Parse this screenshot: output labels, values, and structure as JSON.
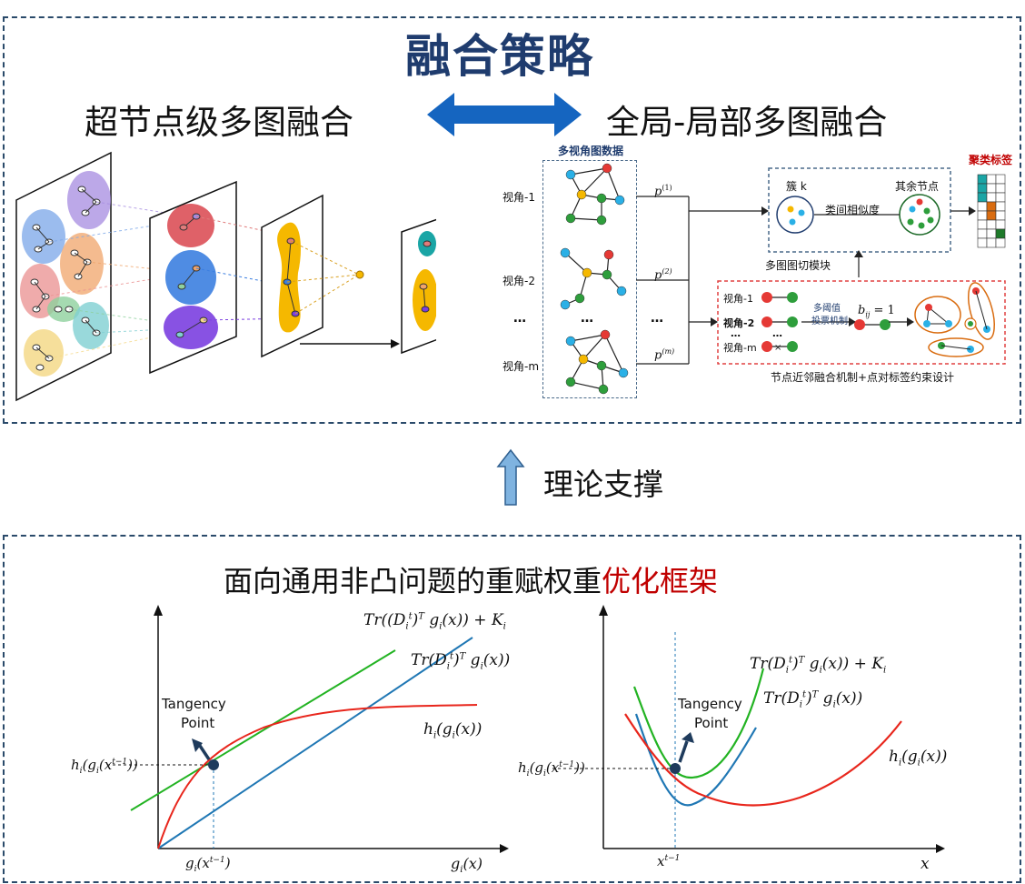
{
  "strategy": {
    "title": "融合策略",
    "left_heading": "超节点级多图融合",
    "right_heading": "全局-局部多图融合",
    "right_diagram": {
      "data_label": "多视角图数据",
      "view1": "视角-1",
      "view2": "视角-2",
      "viewm": "视角-m",
      "ellipsis": "…",
      "p1": "p",
      "p1_sup": "(1)",
      "p2": "p",
      "p2_sup": "(2)",
      "pm": "p",
      "pm_sup": "(m)",
      "cluster_label": "簇 k",
      "rest_nodes_label": "其余节点",
      "inter_sim_label": "类间相似度",
      "cut_module_label": "多图图切模块",
      "cluster_tag_label": "聚类标签",
      "local_view1": "视角-1",
      "local_view2": "视角-2",
      "local_viewm": "视角-m",
      "vote_label_1": "多阈值",
      "vote_label_2": "投票机制",
      "bij_text": "b",
      "bij_sub": "ij",
      "bij_eq": " = 1",
      "local_caption": "节点近邻融合机制+点对标签约束设计"
    }
  },
  "theory": {
    "label": "理论支撑"
  },
  "framework": {
    "title_black": "面向通用非凸问题的重赋权重",
    "title_red": "优化框架",
    "accent_red": "#c00000",
    "plot_left": {
      "green_label": "Tr((D_i^t)^T g_i(x)) + K_i",
      "blue_label": "Tr(D_i^t)^T g_i(x))",
      "red_label": "h_i(g_i(x))",
      "tangency_1": "Tangency",
      "tangency_2": "Point",
      "y_tick": "h_i(g_i(x^{t−1}))",
      "x_tick": "g_i(x^{t−1})",
      "x_axis": "g_i(x)"
    },
    "plot_right": {
      "green_label": "Tr(D_i^t)^T g_i(x)) + K_i",
      "blue_label": "Tr(D_i^t)^T g_i(x))",
      "red_label": "h_i(g_i(x))",
      "tangency_1": "Tangency",
      "tangency_2": "Point",
      "y_tick": "h_i(g_i(x^{t−1}))",
      "x_tick": "x^{t−1}",
      "x_axis": "x"
    }
  },
  "colors": {
    "title_blue": "#1f3c6e",
    "arrow_blue": "#1565c0",
    "curve_green": "#22b322",
    "curve_blue": "#1f77b4",
    "curve_red": "#e8261c",
    "tangency_dark": "#1f3b5c"
  }
}
